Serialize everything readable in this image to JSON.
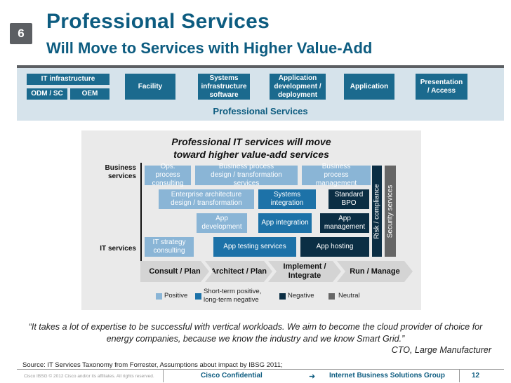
{
  "slide": {
    "number": "6"
  },
  "header": {
    "title": "Professional Services",
    "subtitle": "Will Move to Services with Higher Value-Add"
  },
  "taxonomy": {
    "items": {
      "it_infrastructure": "IT infrastructure",
      "odm_sc": "ODM / SC",
      "oem": "OEM",
      "facility": "Facility",
      "systems_infra": "Systems infrastructure software",
      "app_dev_deploy": "Application development / deployment",
      "application": "Application",
      "presentation": "Presentation / Access"
    },
    "label": "Professional Services"
  },
  "panel": {
    "title_line1": "Professional IT services will move",
    "title_line2": "toward higher value-add services",
    "axis_top": "Business services",
    "axis_bottom": "IT services",
    "boxes": {
      "ops_process": "Ops. process consulting",
      "bpd": "Business process design / transformation services",
      "bpm": "Business process management",
      "ead": "Enterprise architecture design / transformation",
      "sysint": "Systems integration",
      "std_bpo": "Standard BPO",
      "app_dev": "App development",
      "app_integration": "App integration",
      "app_mgmt": "App management",
      "it_strategy": "IT strategy consulting",
      "app_testing": "App testing services",
      "app_hosting": "App hosting",
      "risk": "Risk / compliance",
      "security": "Security services"
    },
    "phases": [
      "Consult / Plan",
      "Architect / Plan",
      "Implement / Integrate",
      "Run / Manage"
    ],
    "legend": {
      "positive": "Positive",
      "mixed": "Short-term positive, long-term negative",
      "negative": "Negative",
      "neutral": "Neutral"
    }
  },
  "quote": {
    "text": "“It takes a lot of expertise to be successful with vertical workloads. We aim to become the cloud provider of choice for energy companies, because we know the industry and we know Smart Grid.”",
    "attribution": "CTO, Large Manufacturer"
  },
  "source": "Source:  IT Services Taxonomy from Forrester, Assumptions about impact by IBSG 2011;",
  "footer": {
    "copyright": "Cisco IBSG © 2012 Cisco and/or its affiliates. All rights reserved.",
    "confidential": "Cisco Confidential",
    "group": "Internet Business Solutions Group",
    "page": "12"
  },
  "colors": {
    "brand": "#0d5c80",
    "positive": "#8ab5d6",
    "mixed": "#1d72a8",
    "negative": "#0b2e44",
    "neutral": "#666666"
  }
}
